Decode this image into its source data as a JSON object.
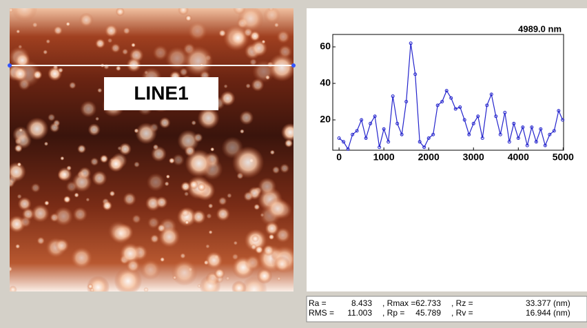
{
  "image_label": "LINE1",
  "chart_data": {
    "type": "line",
    "title": "4989.0 nm",
    "x": [
      0,
      100,
      200,
      300,
      400,
      500,
      600,
      700,
      800,
      900,
      1000,
      1100,
      1200,
      1300,
      1400,
      1500,
      1600,
      1700,
      1800,
      1900,
      2000,
      2100,
      2200,
      2300,
      2400,
      2500,
      2600,
      2700,
      2800,
      2900,
      3000,
      3100,
      3200,
      3300,
      3400,
      3500,
      3600,
      3700,
      3800,
      3900,
      4000,
      4100,
      4200,
      4300,
      4400,
      4500,
      4600,
      4700,
      4800,
      4900,
      4989
    ],
    "series": [
      {
        "color": "#2222cc",
        "values": [
          10,
          8,
          4,
          12,
          14,
          20,
          10,
          18,
          22,
          5,
          15,
          8,
          33,
          18,
          12,
          30,
          62,
          45,
          8,
          5,
          10,
          12,
          28,
          30,
          36,
          32,
          26,
          27,
          20,
          12,
          18,
          22,
          10,
          28,
          34,
          22,
          12,
          24,
          8,
          18,
          10,
          16,
          6,
          16,
          8,
          15,
          6,
          12,
          14,
          25,
          20
        ]
      }
    ],
    "xlim": [
      -140,
      5010
    ],
    "ylim": [
      3.4,
      66.8
    ],
    "xticks": [
      0,
      1000,
      2000,
      3000,
      4000,
      5000
    ],
    "yticks": [
      20,
      40,
      60
    ]
  },
  "stats": [
    [
      "Ra =",
      "8.433",
      ", Rmax =",
      "62.733",
      ", Rz =",
      "33.377 (nm)"
    ],
    [
      "RMS =",
      "11.003",
      ", Rp =",
      "45.789",
      ", Rv =",
      "16.944 (nm)"
    ]
  ]
}
